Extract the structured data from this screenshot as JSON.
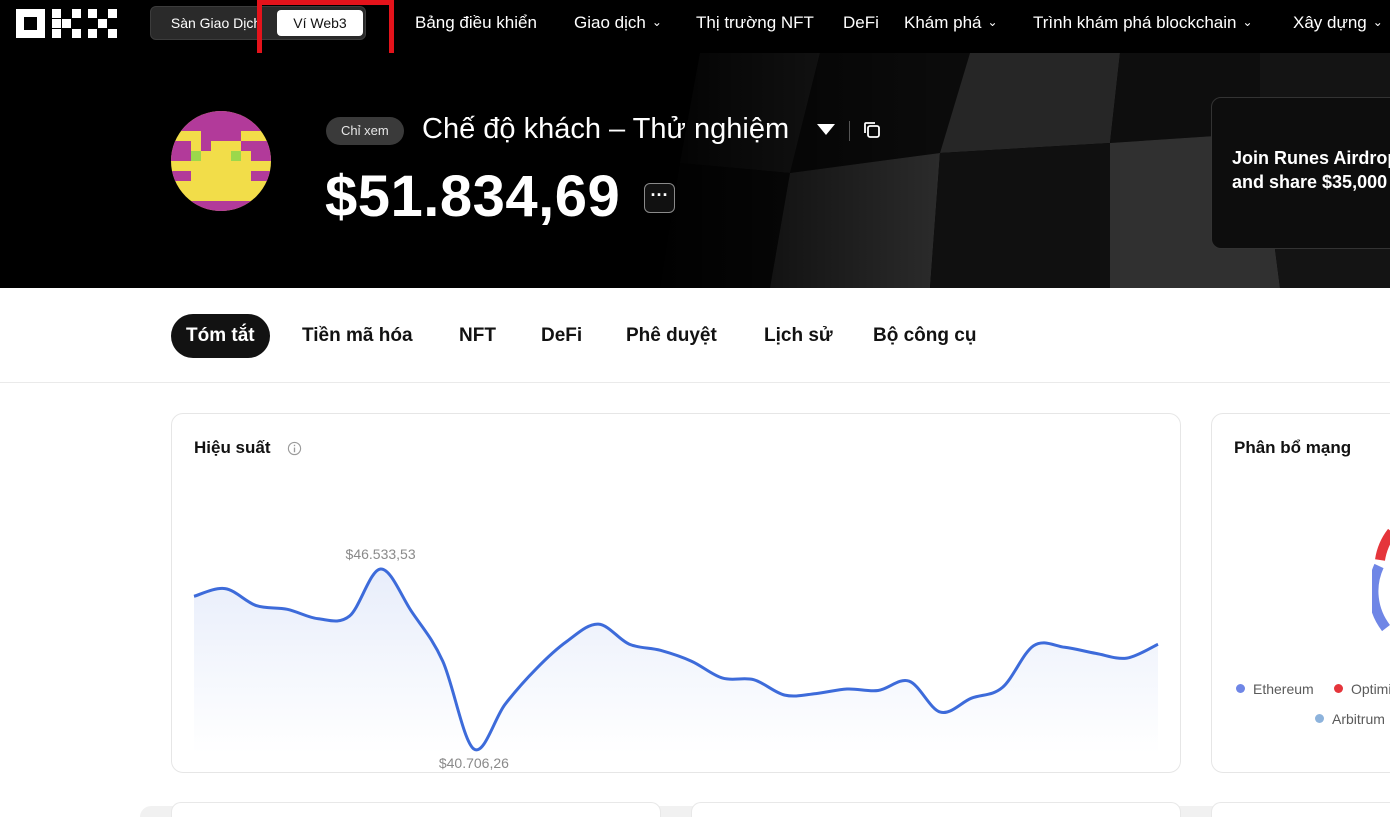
{
  "nav": {
    "mode_exchange": "Sàn Giao Dịch",
    "mode_web3": "Ví Web3",
    "items": [
      {
        "label": "Bảng điều khiển",
        "dropdown": false
      },
      {
        "label": "Giao dịch",
        "dropdown": true
      },
      {
        "label": "Thị trường NFT",
        "dropdown": false
      },
      {
        "label": "DeFi",
        "dropdown": false
      },
      {
        "label": "Khám phá",
        "dropdown": true
      },
      {
        "label": "Trình khám phá blockchain",
        "dropdown": true
      },
      {
        "label": "Xây dựng",
        "dropdown": true
      }
    ]
  },
  "wallet": {
    "badge": "Chỉ xem",
    "name": "Chế độ khách – Thử nghiệm",
    "balance": "$51.834,69",
    "more": "···"
  },
  "promo": {
    "line1": "Join Runes Airdrop",
    "line2": "and share $35,000"
  },
  "tabs": [
    "Tóm tắt",
    "Tiền mã hóa",
    "NFT",
    "DeFi",
    "Phê duyệt",
    "Lịch sử",
    "Bộ công cụ"
  ],
  "performance": {
    "title": "Hiệu suất",
    "chart_data": {
      "type": "area",
      "max_label": "$46.533,53",
      "min_label": "$40.706,26",
      "max_value": 46533.53,
      "min_value": 40706.26,
      "values": [
        45650,
        45900,
        45350,
        45230,
        44920,
        45010,
        46533.53,
        45150,
        43550,
        40706.26,
        42150,
        43300,
        44200,
        44750,
        44100,
        43900,
        43550,
        43000,
        42950,
        42450,
        42500,
        42650,
        42600,
        42900,
        41900,
        42350,
        42700,
        44050,
        44000,
        43800,
        43650,
        44100
      ],
      "line_color": "#3d6bda"
    }
  },
  "network": {
    "title": "Phân bổ mạng",
    "legend": [
      {
        "label": "Ethereum",
        "color": "#6f86e6"
      },
      {
        "label": "Optimism",
        "color": "#e5353b"
      },
      {
        "label": "Arbitrum",
        "color": "#8db3dc"
      }
    ]
  },
  "colors": {
    "highlight": "#e4131b",
    "accent": "#121212"
  }
}
